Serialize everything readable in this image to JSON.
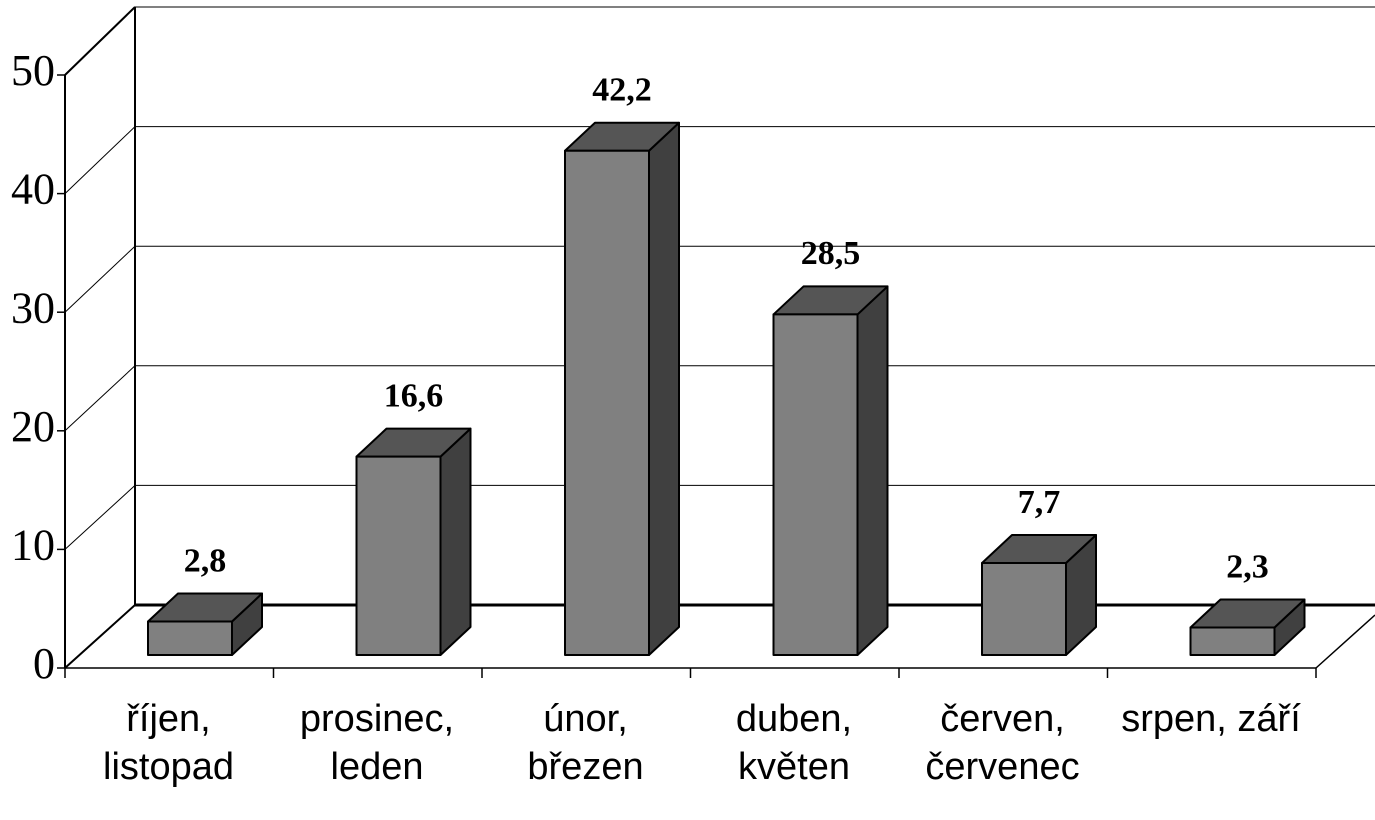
{
  "chart_data": {
    "type": "bar3d",
    "categories": [
      "říjen, listopad",
      "prosinec, leden",
      "únor, březen",
      "duben, květen",
      "červen, červenec",
      "srpen, září"
    ],
    "values": [
      2.8,
      16.6,
      42.2,
      28.5,
      7.7,
      2.3
    ],
    "value_labels": [
      "2,8",
      "16,6",
      "42,2",
      "28,5",
      "7,7",
      "2,3"
    ],
    "color": "#808080",
    "ylim": [
      0,
      50
    ],
    "yticks": [
      0,
      10,
      20,
      30,
      40,
      50
    ],
    "grid": true
  }
}
